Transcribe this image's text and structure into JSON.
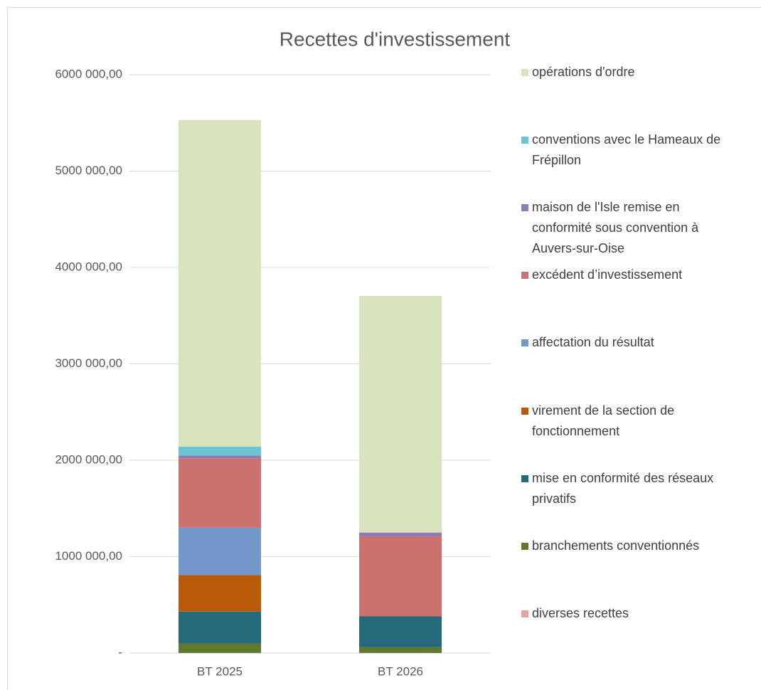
{
  "chart_data": {
    "type": "stacked_bar",
    "title": "Recettes d'investissement",
    "categories": [
      "BT 2025",
      "BT 2026"
    ],
    "series": [
      {
        "name": "diverses recettes",
        "color": "#e6a3a3",
        "values": [
          0,
          0
        ]
      },
      {
        "name": "branchements conventionnés",
        "color": "#5f7a2e",
        "values": [
          100000,
          60000
        ]
      },
      {
        "name": "mise en conformité des réseaux privatifs",
        "color": "#246a7a",
        "values": [
          330000,
          320000
        ]
      },
      {
        "name": "virement de la section de fonctionnement",
        "color": "#b85a0a",
        "values": [
          380000,
          0
        ]
      },
      {
        "name": "affectation du résultat",
        "color": "#7399cc",
        "values": [
          490000,
          0
        ]
      },
      {
        "name": "excédent d’investissement",
        "color": "#cd7070",
        "values": [
          720000,
          830000
        ]
      },
      {
        "name": "maison de l'Isle remise en conformité sous convention à Auvers-sur-Oise",
        "color": "#8f7cb5",
        "values": [
          30000,
          40000
        ]
      },
      {
        "name": "conventions avec le Hameaux de Frépillon",
        "color": "#6cc3d3",
        "values": [
          90000,
          0
        ]
      },
      {
        "name": "opérations d'ordre",
        "color": "#d7e4bd",
        "values": [
          3390000,
          2455000
        ]
      }
    ],
    "ylim": [
      0,
      6000000
    ],
    "yticks": [
      {
        "value": 0,
        "label": "-"
      },
      {
        "value": 1000000,
        "label": "1000 000,00"
      },
      {
        "value": 2000000,
        "label": "2000 000,00"
      },
      {
        "value": 3000000,
        "label": "3000 000,00"
      },
      {
        "value": 4000000,
        "label": "4000 000,00"
      },
      {
        "value": 5000000,
        "label": "5000 000,00"
      },
      {
        "value": 6000000,
        "label": "6000 000,00"
      }
    ],
    "grid": true,
    "legend": "right"
  }
}
